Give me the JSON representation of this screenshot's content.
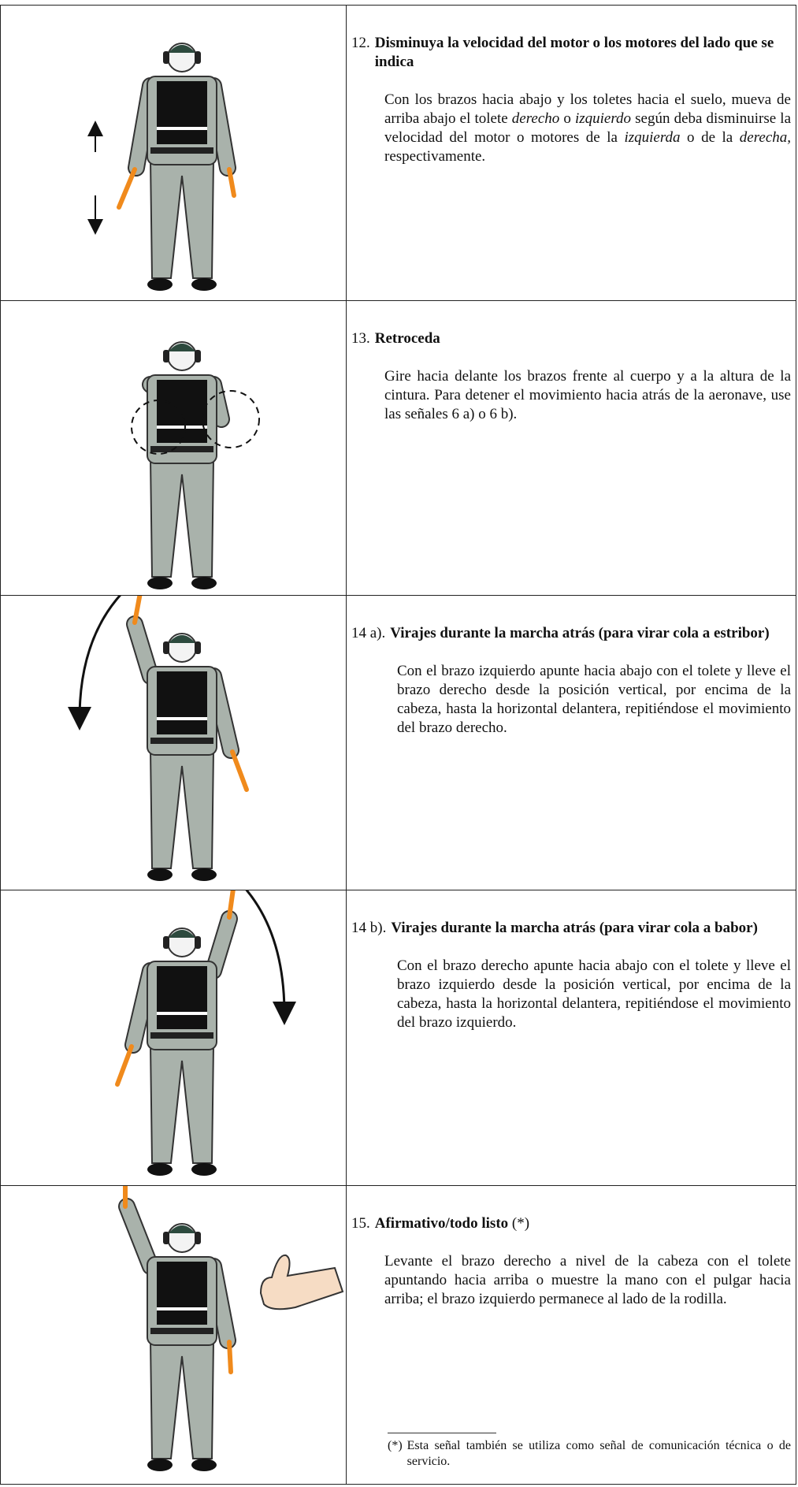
{
  "rows": [
    {
      "number": "12.",
      "title": "Disminuya la velocidad del motor o los motores del lado que se indica",
      "body": [
        {
          "text": "Con los brazos hacia abajo y los toletes hacia el suelo, mueva de arriba abajo el tolete "
        },
        {
          "text": "derecho",
          "italic": true
        },
        {
          "text": " o "
        },
        {
          "text": "izquierdo",
          "italic": true
        },
        {
          "text": " según deba disminuirse la velocidad del motor o motores de la "
        },
        {
          "text": "izquierda",
          "italic": true
        },
        {
          "text": " o de la "
        },
        {
          "text": "derecha,",
          "italic": true
        },
        {
          "text": " respectivamente."
        }
      ]
    },
    {
      "number": "13.",
      "title": "Retroceda",
      "body": [
        {
          "text": "Gire hacia delante los brazos frente al cuerpo y a la altura de la cintura. Para detener el movimiento hacia atrás de la aeronave, use las señales 6 a) o 6 b)."
        }
      ]
    },
    {
      "number": "14 a).",
      "title": "Virajes durante la marcha atrás (para virar cola a estribor)",
      "body": [
        {
          "text": "Con el brazo izquierdo apunte hacia abajo con el tolete y lleve el brazo derecho desde la posición vertical, por encima de la cabeza, hasta la horizontal delantera, repitiéndose el movimiento del brazo derecho."
        }
      ]
    },
    {
      "number": "14 b).",
      "title": "Virajes durante la marcha atrás (para virar cola a babor)",
      "body": [
        {
          "text": "Con el brazo derecho apunte hacia abajo con el tolete y lleve el brazo izquierdo desde la posición vertical, por encima de la cabeza, hasta la horizontal delantera, repitiéndose el movimiento del brazo izquierdo."
        }
      ]
    },
    {
      "number": "15.",
      "title": "Afirmativo/todo listo",
      "title_note": "(*)",
      "body": [
        {
          "text": "Levante el brazo derecho a nivel de la cabeza con el tolete apuntando hacia arriba o muestre la mano con el pulgar hacia arriba; el brazo izquierdo permanece al lado de la rodilla."
        }
      ]
    }
  ],
  "footnote": {
    "marker": "(*)",
    "text": "Esta señal también se utiliza como señal de comunicación técnica o de servicio."
  }
}
